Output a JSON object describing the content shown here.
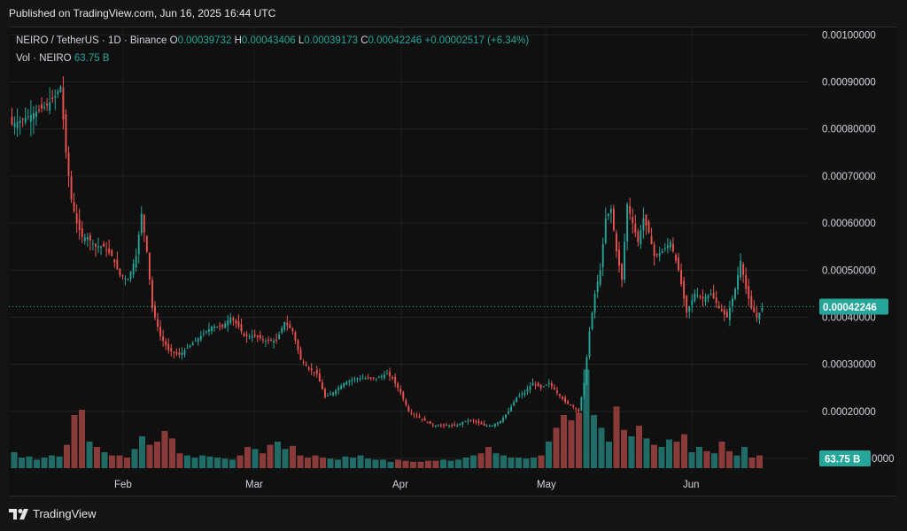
{
  "header": {
    "published": "Published on TradingView.com, Jun 16, 2025 16:44 UTC"
  },
  "legend": {
    "symbol": "NEIRO / TetherUS · 1D · Binance",
    "o_label": "O",
    "o_value": "0.00039732",
    "h_label": "H",
    "h_value": "0.00043406",
    "l_label": "L",
    "l_value": "0.00039173",
    "c_label": "C",
    "c_value": "0.00042246",
    "change": "+0.00002517 (+6.34%)",
    "vol_label": "Vol · NEIRO",
    "vol_value": "63.75 B"
  },
  "footer": {
    "brand": "TradingView"
  },
  "colors": {
    "up": "#26a69a",
    "down": "#ef5350",
    "up_vol": "#1f6b66",
    "down_vol": "#8a3a39",
    "grid": "#222222",
    "background": "#101010"
  },
  "chart_data": {
    "type": "candlestick",
    "symbol": "NEIRO / TetherUS",
    "interval": "1D",
    "exchange": "Binance",
    "x_ticks": [
      "Feb",
      "Mar",
      "Apr",
      "May",
      "Jun"
    ],
    "y_ticks": [
      "0.00100000",
      "0.00090000",
      "0.00080000",
      "0.00070000",
      "0.00060000",
      "0.00050000",
      "0.00040000",
      "0.00030000",
      "0.00020000",
      "0.00010000"
    ],
    "ylim": [
      7e-05,
      0.00101
    ],
    "last_price": "0.00042246",
    "last_volume": "63.75 B",
    "close_points": [
      [
        0,
        0.00081
      ],
      [
        4,
        0.00082
      ],
      [
        7,
        0.00083
      ],
      [
        10,
        0.00084
      ],
      [
        13,
        0.00085
      ],
      [
        16,
        0.00087
      ],
      [
        18,
        0.00089
      ],
      [
        20,
        0.00075
      ],
      [
        22,
        0.00065
      ],
      [
        24,
        0.0006
      ],
      [
        26,
        0.00057
      ],
      [
        28,
        0.00057
      ],
      [
        31,
        0.00055
      ],
      [
        34,
        0.00055
      ],
      [
        37,
        0.00053
      ],
      [
        40,
        0.00049
      ],
      [
        43,
        0.00048
      ],
      [
        46,
        0.00053
      ],
      [
        48,
        0.00062
      ],
      [
        50,
        0.00054
      ],
      [
        52,
        0.00042
      ],
      [
        55,
        0.00036
      ],
      [
        58,
        0.00033
      ],
      [
        62,
        0.00032
      ],
      [
        66,
        0.00034
      ],
      [
        70,
        0.00036
      ],
      [
        74,
        0.00038
      ],
      [
        78,
        0.00038
      ],
      [
        81,
        0.0004
      ],
      [
        84,
        0.00038
      ],
      [
        86,
        0.00036
      ],
      [
        90,
        0.00036
      ],
      [
        94,
        0.00035
      ],
      [
        98,
        0.00035
      ],
      [
        101,
        0.00039
      ],
      [
        104,
        0.00037
      ],
      [
        107,
        0.00031
      ],
      [
        110,
        0.00029
      ],
      [
        113,
        0.00028
      ],
      [
        116,
        0.00023
      ],
      [
        119,
        0.00024
      ],
      [
        123,
        0.00026
      ],
      [
        127,
        0.00027
      ],
      [
        131,
        0.00027
      ],
      [
        135,
        0.00027
      ],
      [
        139,
        0.00028
      ],
      [
        141,
        0.00027
      ],
      [
        144,
        0.00024
      ],
      [
        147,
        0.0002
      ],
      [
        150,
        0.00019
      ],
      [
        153,
        0.00018
      ],
      [
        156,
        0.00017
      ],
      [
        159,
        0.00017
      ],
      [
        162,
        0.00017
      ],
      [
        165,
        0.00017
      ],
      [
        168,
        0.00018
      ],
      [
        171,
        0.00018
      ],
      [
        175,
        0.00017
      ],
      [
        178,
        0.00017
      ],
      [
        181,
        0.00018
      ],
      [
        184,
        0.0002
      ],
      [
        187,
        0.00023
      ],
      [
        190,
        0.00024
      ],
      [
        193,
        0.00026
      ],
      [
        196,
        0.00025
      ],
      [
        199,
        0.00026
      ],
      [
        202,
        0.00024
      ],
      [
        205,
        0.00022
      ],
      [
        208,
        0.00021
      ],
      [
        210,
        0.0002
      ],
      [
        212,
        0.00026
      ],
      [
        214,
        0.00037
      ],
      [
        216,
        0.00045
      ],
      [
        218,
        0.0005
      ],
      [
        220,
        0.00061
      ],
      [
        222,
        0.00063
      ],
      [
        224,
        0.00054
      ],
      [
        226,
        0.00048
      ],
      [
        228,
        0.00064
      ],
      [
        230,
        0.0006
      ],
      [
        232,
        0.00056
      ],
      [
        234,
        0.00061
      ],
      [
        236,
        0.00058
      ],
      [
        238,
        0.00053
      ],
      [
        241,
        0.00054
      ],
      [
        244,
        0.00056
      ],
      [
        247,
        0.0005
      ],
      [
        250,
        0.00041
      ],
      [
        253,
        0.00045
      ],
      [
        256,
        0.00044
      ],
      [
        259,
        0.00045
      ],
      [
        262,
        0.00042
      ],
      [
        265,
        0.0004
      ],
      [
        268,
        0.00046
      ],
      [
        270,
        0.00052
      ],
      [
        272,
        0.00046
      ],
      [
        274,
        0.00042
      ],
      [
        276,
        0.0004
      ],
      [
        278,
        0.00042
      ]
    ],
    "volume_relative": [
      0.15,
      0.1,
      0.11,
      0.08,
      0.1,
      0.12,
      0.11,
      0.22,
      0.5,
      0.55,
      0.25,
      0.2,
      0.15,
      0.12,
      0.12,
      0.1,
      0.18,
      0.3,
      0.22,
      0.25,
      0.35,
      0.28,
      0.14,
      0.12,
      0.1,
      0.12,
      0.11,
      0.1,
      0.09,
      0.08,
      0.12,
      0.2,
      0.18,
      0.14,
      0.22,
      0.25,
      0.18,
      0.21,
      0.12,
      0.1,
      0.12,
      0.1,
      0.09,
      0.08,
      0.11,
      0.1,
      0.12,
      0.09,
      0.08,
      0.08,
      0.06,
      0.08,
      0.07,
      0.06,
      0.06,
      0.07,
      0.07,
      0.08,
      0.07,
      0.08,
      0.1,
      0.12,
      0.14,
      0.2,
      0.14,
      0.12,
      0.1,
      0.1,
      0.09,
      0.1,
      0.12,
      0.25,
      0.38,
      0.5,
      0.45,
      0.52,
      0.93,
      0.5,
      0.38,
      0.25,
      0.58,
      0.36,
      0.3,
      0.4,
      0.28,
      0.22,
      0.2,
      0.27,
      0.25,
      0.32,
      0.15,
      0.2,
      0.16,
      0.14,
      0.25,
      0.16,
      0.12,
      0.2,
      0.1,
      0.12
    ]
  }
}
